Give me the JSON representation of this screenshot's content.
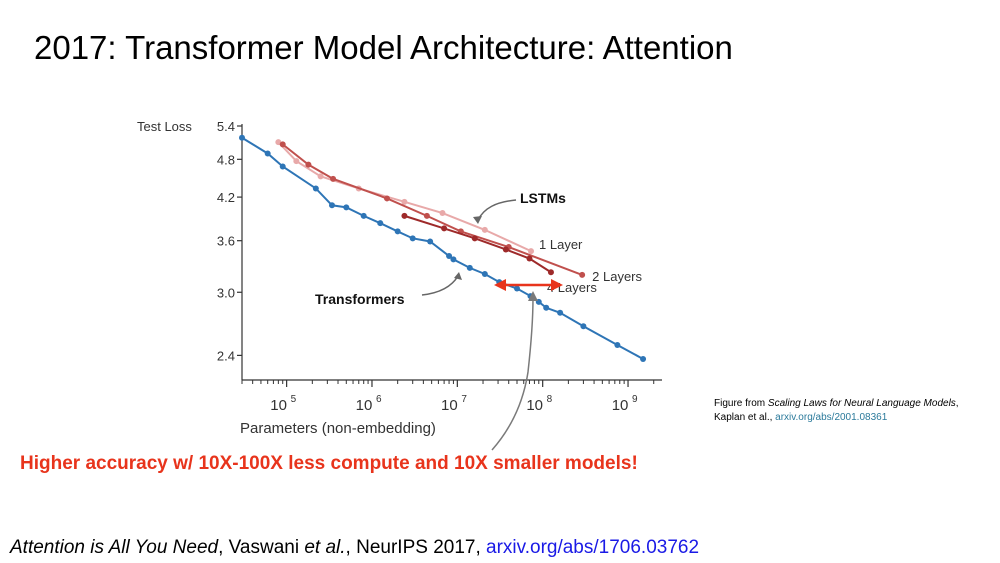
{
  "slide": {
    "title": "2017: Transformer Model Architecture: Attention",
    "headline": "Higher accuracy w/ 10X-100X less compute and 10X smaller models!",
    "citation": {
      "line1_prefix": "Figure from ",
      "line1_title": "Scaling Laws for Neural Language Models",
      "line1_suffix": ",",
      "line2_prefix": "Kaplan et al., ",
      "line2_link": "arxiv.org/abs/2001.08361"
    },
    "reference": {
      "title": "Attention is All You Need",
      "authors_prefix": ", Vaswani ",
      "authors_italic": "et al.",
      "venue": ", NeurIPS 2017, ",
      "link": "arxiv.org/abs/1706.03762"
    }
  },
  "chart_data": {
    "type": "line",
    "ylabel": "Test Loss",
    "xlabel": "Parameters (non-embedding)",
    "x_scale": "log",
    "y_scale": "log",
    "x_ticks": [
      {
        "value": 100000,
        "label": "10^5"
      },
      {
        "value": 1000000,
        "label": "10^6"
      },
      {
        "value": 10000000,
        "label": "10^7"
      },
      {
        "value": 100000000,
        "label": "10^8"
      },
      {
        "value": 1000000000,
        "label": "10^9"
      }
    ],
    "y_ticks": [
      2.4,
      3.0,
      3.6,
      4.2,
      4.8,
      5.4
    ],
    "xlim": [
      30000,
      2500000000
    ],
    "ylim": [
      2.2,
      5.4
    ],
    "series": [
      {
        "name": "Transformers",
        "color": "#2e75b6",
        "points": [
          [
            30000,
            5.18
          ],
          [
            60000,
            4.9
          ],
          [
            90000,
            4.68
          ],
          [
            220000,
            4.33
          ],
          [
            340000,
            4.08
          ],
          [
            500000,
            4.05
          ],
          [
            800000,
            3.93
          ],
          [
            1250000,
            3.83
          ],
          [
            2000000,
            3.72
          ],
          [
            3000000,
            3.63
          ],
          [
            4800000,
            3.59
          ],
          [
            8000000,
            3.41
          ],
          [
            9000000,
            3.37
          ],
          [
            14000000,
            3.27
          ],
          [
            21000000,
            3.2
          ],
          [
            31000000,
            3.11
          ],
          [
            50000000,
            3.04
          ],
          [
            72000000,
            2.96
          ],
          [
            90000000,
            2.9
          ],
          [
            110000000,
            2.84
          ],
          [
            160000000,
            2.79
          ],
          [
            300000000,
            2.66
          ],
          [
            750000000,
            2.49
          ],
          [
            1500000000,
            2.37
          ]
        ]
      },
      {
        "name": "1 Layer",
        "color": "#e8a9a9",
        "points": [
          [
            80000,
            5.1
          ],
          [
            130000,
            4.77
          ],
          [
            250000,
            4.52
          ],
          [
            700000,
            4.33
          ],
          [
            2400000,
            4.13
          ],
          [
            6700000,
            3.97
          ],
          [
            21000000,
            3.74
          ],
          [
            73000000,
            3.47
          ]
        ]
      },
      {
        "name": "2 Layers",
        "color": "#c0504d",
        "points": [
          [
            90000,
            5.06
          ],
          [
            180000,
            4.71
          ],
          [
            350000,
            4.48
          ],
          [
            1500000,
            4.18
          ],
          [
            4400000,
            3.93
          ],
          [
            11000000,
            3.72
          ],
          [
            40000000,
            3.52
          ],
          [
            290000000,
            3.19
          ]
        ]
      },
      {
        "name": "4 Layers",
        "color": "#9e2a2a",
        "points": [
          [
            2400000,
            3.93
          ],
          [
            7000000,
            3.76
          ],
          [
            16000000,
            3.63
          ],
          [
            37000000,
            3.49
          ],
          [
            70000000,
            3.38
          ],
          [
            125000000,
            3.22
          ]
        ]
      }
    ],
    "annotations": [
      {
        "text": "LSTMs"
      },
      {
        "text": "Transformers"
      }
    ],
    "highlight_arrow": {
      "color": "#e8341c"
    }
  }
}
